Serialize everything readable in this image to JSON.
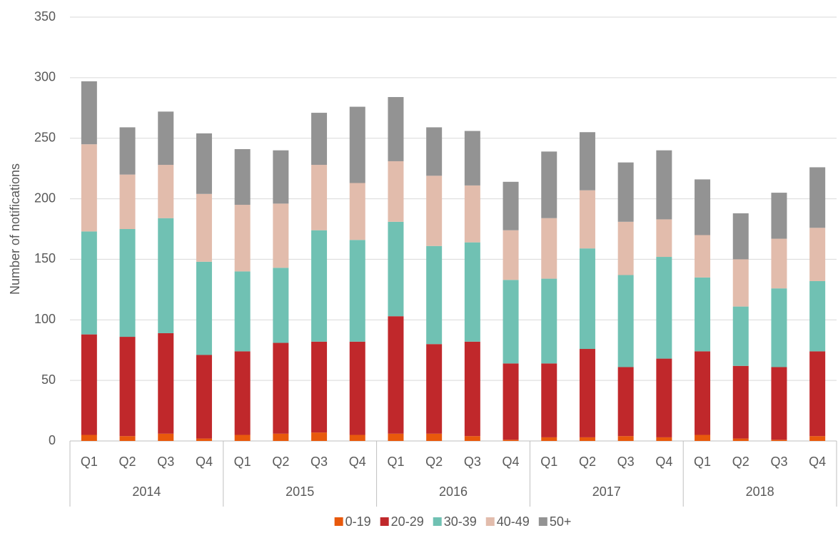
{
  "chart_data": {
    "type": "stacked_bar",
    "y_label": "Number of notifications",
    "categories": [
      "Q1",
      "Q2",
      "Q3",
      "Q4",
      "Q1",
      "Q2",
      "Q3",
      "Q4",
      "Q1",
      "Q2",
      "Q3",
      "Q4",
      "Q1",
      "Q2",
      "Q3",
      "Q4",
      "Q1",
      "Q2",
      "Q3",
      "Q4"
    ],
    "category_groups": [
      "2014",
      "2015",
      "2016",
      "2017",
      "2018"
    ],
    "series": [
      {
        "name": "0-19",
        "color": "#e8590c",
        "values": [
          5,
          4,
          6,
          2,
          5,
          6,
          7,
          5,
          6,
          6,
          4,
          1,
          3,
          3,
          4,
          3,
          5,
          2,
          1,
          4
        ]
      },
      {
        "name": "20-29",
        "color": "#c0282b",
        "values": [
          83,
          82,
          83,
          69,
          69,
          75,
          75,
          77,
          97,
          74,
          78,
          63,
          61,
          73,
          57,
          65,
          69,
          60,
          60,
          70
        ]
      },
      {
        "name": "30-39",
        "color": "#70c1b3",
        "values": [
          85,
          89,
          95,
          77,
          66,
          62,
          92,
          84,
          78,
          81,
          82,
          69,
          70,
          83,
          76,
          84,
          61,
          49,
          65,
          58
        ]
      },
      {
        "name": "40-49",
        "color": "#e2bcac",
        "values": [
          72,
          45,
          44,
          56,
          55,
          53,
          54,
          47,
          50,
          58,
          47,
          41,
          50,
          48,
          44,
          31,
          35,
          39,
          41,
          44
        ]
      },
      {
        "name": "50+",
        "color": "#939393",
        "values": [
          52,
          39,
          44,
          50,
          46,
          44,
          43,
          63,
          53,
          40,
          45,
          40,
          55,
          48,
          49,
          57,
          46,
          38,
          38,
          50
        ]
      }
    ],
    "ylim": [
      0,
      350
    ],
    "yticks": [
      0,
      50,
      100,
      150,
      200,
      250,
      300,
      350
    ],
    "grid": true,
    "legend": "bottom"
  }
}
